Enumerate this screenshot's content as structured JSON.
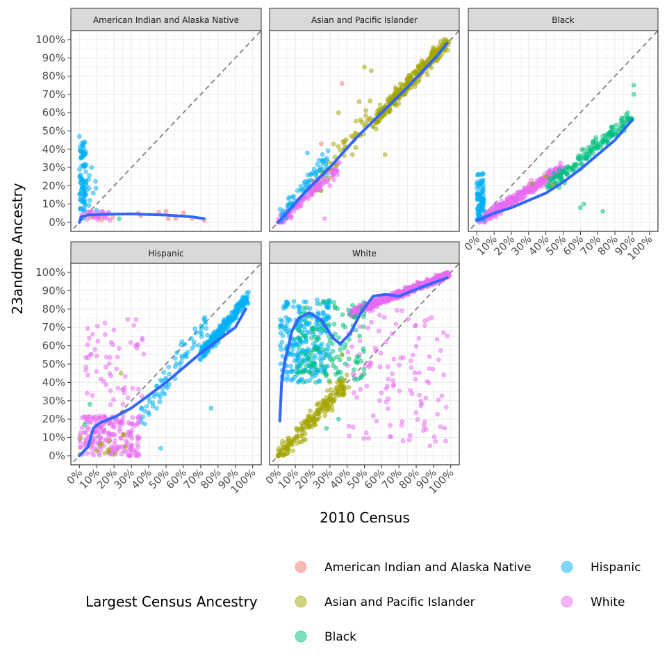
{
  "figure": {
    "xlabel": "2010 Census",
    "ylabel": "23andme Ancestry"
  },
  "legend": {
    "title": "Largest Census Ancestry",
    "items": [
      {
        "label": "American Indian and Alaska Native",
        "color": "#F8766D"
      },
      {
        "label": "Asian and Pacific Islander",
        "color": "#A3A500"
      },
      {
        "label": "Black",
        "color": "#00BF7D"
      },
      {
        "label": "Hispanic",
        "color": "#00B0F6"
      },
      {
        "label": "White",
        "color": "#E76BF3"
      }
    ]
  },
  "chart_data": {
    "type": "scatter",
    "facets": [
      "American Indian and Alaska Native",
      "Asian and Pacific Islander",
      "Black",
      "Hispanic",
      "White"
    ],
    "xlim": [
      0,
      100
    ],
    "ylim": [
      0,
      100
    ],
    "ticks": [
      "0%",
      "10%",
      "20%",
      "30%",
      "40%",
      "50%",
      "60%",
      "70%",
      "80%",
      "90%",
      "100%"
    ],
    "reference_line": "y = x (dashed)",
    "smooth_color": "#3366FF",
    "grid": true,
    "legend_position": "bottom",
    "panels": [
      {
        "name": "American Indian and Alaska Native",
        "smooth": [
          [
            0,
            0
          ],
          [
            1,
            3
          ],
          [
            5,
            4
          ],
          [
            15,
            4.4
          ],
          [
            30,
            4.6
          ],
          [
            50,
            4
          ],
          [
            65,
            3
          ],
          [
            72,
            2
          ]
        ],
        "clusters": [
          {
            "group": "Hispanic",
            "n": 90,
            "x": [
              0,
              4
            ],
            "y": [
              2,
              44
            ]
          },
          {
            "group": "Hispanic",
            "n": 8,
            "x": [
              3,
              12
            ],
            "y": [
              6,
              30
            ]
          },
          {
            "group": "White",
            "n": 30,
            "x": [
              1,
              18
            ],
            "y": [
              1,
              6
            ]
          },
          {
            "group": "American Indian and Alaska Native",
            "n": 8,
            "x": [
              2,
              72
            ],
            "y": [
              1,
              6
            ]
          }
        ],
        "points": [
          {
            "g": "Hispanic",
            "x": 0,
            "y": 47
          },
          {
            "g": "Hispanic",
            "x": 7,
            "y": 30
          },
          {
            "g": "Hispanic",
            "x": 4,
            "y": 20
          },
          {
            "g": "Hispanic",
            "x": 8,
            "y": 16
          },
          {
            "g": "Hispanic",
            "x": 6,
            "y": 12
          },
          {
            "g": "Black",
            "x": 23,
            "y": 2
          },
          {
            "g": "American Indian and Alaska Native",
            "x": 50,
            "y": 6
          },
          {
            "g": "American Indian and Alaska Native",
            "x": 34,
            "y": 5
          },
          {
            "g": "American Indian and Alaska Native",
            "x": 65,
            "y": 2
          },
          {
            "g": "American Indian and Alaska Native",
            "x": 72,
            "y": 1
          }
        ]
      },
      {
        "name": "Asian and Pacific Islander",
        "smooth": [
          [
            0,
            0
          ],
          [
            5,
            5
          ],
          [
            15,
            16
          ],
          [
            30,
            30
          ],
          [
            45,
            46
          ],
          [
            60,
            60
          ],
          [
            75,
            74
          ],
          [
            85,
            84
          ],
          [
            92,
            91
          ],
          [
            98,
            98
          ]
        ],
        "clusters": [
          {
            "group": "Asian and Pacific Islander",
            "n": 320,
            "x": [
              55,
              98
            ],
            "y": [
              55,
              99
            ],
            "along": true,
            "spread": 6
          },
          {
            "group": "Asian and Pacific Islander",
            "n": 60,
            "x": [
              20,
              55
            ],
            "y": [
              18,
              60
            ],
            "along": true,
            "spread": 12
          },
          {
            "group": "White",
            "n": 140,
            "x": [
              0,
              35
            ],
            "y": [
              0,
              30
            ],
            "along": true,
            "spread": 5
          },
          {
            "group": "Hispanic",
            "n": 60,
            "x": [
              2,
              30
            ],
            "y": [
              4,
              38
            ],
            "along": true,
            "spread": 6
          }
        ],
        "points": [
          {
            "g": "American Indian and Alaska Native",
            "x": 37,
            "y": 76
          },
          {
            "g": "American Indian and Alaska Native",
            "x": 25,
            "y": 43
          },
          {
            "g": "Asian and Pacific Islander",
            "x": 50,
            "y": 85
          },
          {
            "g": "Asian and Pacific Islander",
            "x": 54,
            "y": 83
          },
          {
            "g": "Asian and Pacific Islander",
            "x": 47,
            "y": 66
          },
          {
            "g": "Asian and Pacific Islander",
            "x": 35,
            "y": 60
          },
          {
            "g": "Asian and Pacific Islander",
            "x": 43,
            "y": 37
          },
          {
            "g": "Asian and Pacific Islander",
            "x": 62,
            "y": 37
          },
          {
            "g": "Hispanic",
            "x": 17,
            "y": 38
          },
          {
            "g": "Hispanic",
            "x": 28,
            "y": 26
          },
          {
            "g": "White",
            "x": 30,
            "y": 20
          },
          {
            "g": "White",
            "x": 27,
            "y": 2
          }
        ]
      },
      {
        "name": "Black",
        "smooth": [
          [
            0,
            1
          ],
          [
            10,
            5
          ],
          [
            20,
            8
          ],
          [
            30,
            12
          ],
          [
            40,
            16
          ],
          [
            50,
            22
          ],
          [
            60,
            29
          ],
          [
            70,
            37
          ],
          [
            80,
            45
          ],
          [
            90,
            56
          ]
        ],
        "clusters": [
          {
            "group": "White",
            "n": 380,
            "x": [
              2,
              50
            ],
            "y": [
              1,
              30
            ],
            "along": true,
            "spread": 4
          },
          {
            "group": "Hispanic",
            "n": 90,
            "x": [
              0,
              4
            ],
            "y": [
              1,
              27
            ]
          },
          {
            "group": "Black",
            "n": 170,
            "x": [
              40,
              90
            ],
            "y": [
              18,
              58
            ],
            "along": true,
            "spread": 6
          }
        ],
        "points": [
          {
            "g": "Black",
            "x": 91,
            "y": 75
          },
          {
            "g": "Black",
            "x": 91,
            "y": 70
          },
          {
            "g": "Black",
            "x": 78,
            "y": 52
          },
          {
            "g": "Black",
            "x": 62,
            "y": 10
          },
          {
            "g": "Black",
            "x": 60,
            "y": 8
          },
          {
            "g": "Black",
            "x": 73,
            "y": 6
          },
          {
            "g": "Asian and Pacific Islander",
            "x": 40,
            "y": 25
          },
          {
            "g": "Asian and Pacific Islander",
            "x": 44,
            "y": 20
          },
          {
            "g": "Asian and Pacific Islander",
            "x": 32,
            "y": 21
          }
        ]
      },
      {
        "name": "Hispanic",
        "smooth": [
          [
            0,
            0
          ],
          [
            5,
            5
          ],
          [
            8,
            15
          ],
          [
            12,
            18
          ],
          [
            20,
            21
          ],
          [
            30,
            26
          ],
          [
            40,
            33
          ],
          [
            50,
            40
          ],
          [
            60,
            48
          ],
          [
            70,
            56
          ],
          [
            80,
            63
          ],
          [
            90,
            70
          ],
          [
            96,
            80
          ]
        ],
        "clusters": [
          {
            "group": "Hispanic",
            "n": 260,
            "x": [
              70,
              97
            ],
            "y": [
              55,
              86
            ],
            "along": true,
            "spread": 5
          },
          {
            "group": "Hispanic",
            "n": 70,
            "x": [
              35,
              75
            ],
            "y": [
              20,
              75
            ],
            "along": true,
            "spread": 10
          },
          {
            "group": "White",
            "n": 200,
            "x": [
              0,
              35
            ],
            "y": [
              0,
              22
            ]
          },
          {
            "group": "White",
            "n": 60,
            "x": [
              3,
              38
            ],
            "y": [
              25,
              78
            ]
          },
          {
            "group": "Asian and Pacific Islander",
            "n": 14,
            "x": [
              0,
              28
            ],
            "y": [
              0,
              12
            ]
          }
        ],
        "points": [
          {
            "g": "Hispanic",
            "x": 47,
            "y": 4
          },
          {
            "g": "Hispanic",
            "x": 76,
            "y": 26
          },
          {
            "g": "Asian and Pacific Islander",
            "x": 24,
            "y": 45
          },
          {
            "g": "Asian and Pacific Islander",
            "x": 26,
            "y": 24
          },
          {
            "g": "Black",
            "x": 6,
            "y": 28
          },
          {
            "g": "Black",
            "x": 3,
            "y": 17
          }
        ]
      },
      {
        "name": "White",
        "smooth": [
          [
            1,
            19
          ],
          [
            2,
            40
          ],
          [
            4,
            52
          ],
          [
            8,
            68
          ],
          [
            12,
            75
          ],
          [
            18,
            78
          ],
          [
            25,
            74
          ],
          [
            32,
            64
          ],
          [
            36,
            61
          ],
          [
            42,
            67
          ],
          [
            48,
            78
          ],
          [
            55,
            87
          ],
          [
            62,
            88
          ],
          [
            70,
            87
          ],
          [
            78,
            90
          ],
          [
            86,
            93
          ],
          [
            92,
            95
          ],
          [
            98,
            97
          ]
        ],
        "clusters": [
          {
            "group": "White",
            "n": 520,
            "x": [
              42,
              99
            ],
            "y": [
              78,
              99
            ],
            "along": true,
            "spread": 3
          },
          {
            "group": "White",
            "n": 120,
            "x": [
              40,
              98
            ],
            "y": [
              5,
              80
            ]
          },
          {
            "group": "Hispanic",
            "n": 260,
            "x": [
              1,
              30
            ],
            "y": [
              40,
              85
            ]
          },
          {
            "group": "Black",
            "n": 140,
            "x": [
              10,
              50
            ],
            "y": [
              40,
              85
            ]
          },
          {
            "group": "Asian and Pacific Islander",
            "n": 200,
            "x": [
              0,
              40
            ],
            "y": [
              0,
              40
            ],
            "along": true,
            "spread": 8
          }
        ],
        "points": [
          {
            "g": "Asian and Pacific Islander",
            "x": 30,
            "y": 40
          },
          {
            "g": "Asian and Pacific Islander",
            "x": 37,
            "y": 55
          },
          {
            "g": "Black",
            "x": 35,
            "y": 20
          },
          {
            "g": "Black",
            "x": 28,
            "y": 15
          }
        ]
      }
    ]
  }
}
